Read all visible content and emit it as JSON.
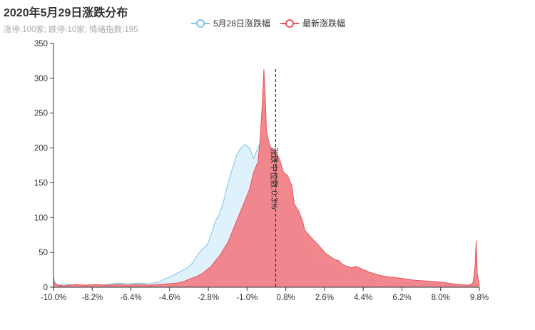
{
  "title": "2020年5月29日涨跌分布",
  "subtitle": "涨停:100家; 跌停:10家; 情绪指数:195",
  "legend": [
    {
      "name": "5月28日涨跌幅",
      "color": "#7ec3e6"
    },
    {
      "name": "最新涨跌幅",
      "color": "#e8535a"
    }
  ],
  "median_label": "涨跌中位数:0.3%",
  "chart_data": {
    "type": "area",
    "title": "2020年5月29日涨跌分布",
    "subtitle": "涨停:100家; 跌停:10家; 情绪指数:195",
    "xlabel": "",
    "ylabel": "",
    "xlim": [
      -10,
      10
    ],
    "ylim": [
      0,
      350
    ],
    "x_ticks": [
      "-10.0%",
      "-8.2%",
      "-6.4%",
      "-4.6%",
      "-2.8%",
      "-1.0%",
      "0.8%",
      "2.6%",
      "4.4%",
      "6.2%",
      "8.0%",
      "9.8%"
    ],
    "y_ticks": [
      0,
      50,
      100,
      150,
      200,
      250,
      300,
      350
    ],
    "grid": false,
    "legend_position": "top-center",
    "median": {
      "x": 0.3,
      "label": "涨跌中位数:0.3%"
    },
    "series": [
      {
        "name": "5月28日涨跌幅",
        "color": "#7ec3e6",
        "fill": "#dff1fb",
        "points": [
          [
            -10.0,
            15
          ],
          [
            -9.9,
            3
          ],
          [
            -9.5,
            5
          ],
          [
            -9.0,
            3
          ],
          [
            -8.5,
            2
          ],
          [
            -8.0,
            3
          ],
          [
            -7.5,
            4
          ],
          [
            -7.0,
            6
          ],
          [
            -6.5,
            5
          ],
          [
            -6.0,
            6
          ],
          [
            -5.5,
            5
          ],
          [
            -5.0,
            8
          ],
          [
            -4.8,
            12
          ],
          [
            -4.6,
            14
          ],
          [
            -4.2,
            20
          ],
          [
            -3.9,
            25
          ],
          [
            -3.6,
            30
          ],
          [
            -3.4,
            38
          ],
          [
            -3.2,
            48
          ],
          [
            -3.0,
            55
          ],
          [
            -2.8,
            60
          ],
          [
            -2.6,
            75
          ],
          [
            -2.4,
            95
          ],
          [
            -2.2,
            105
          ],
          [
            -2.0,
            125
          ],
          [
            -1.8,
            150
          ],
          [
            -1.6,
            170
          ],
          [
            -1.4,
            190
          ],
          [
            -1.2,
            200
          ],
          [
            -1.0,
            205
          ],
          [
            -0.8,
            200
          ],
          [
            -0.6,
            185
          ],
          [
            -0.4,
            200
          ],
          [
            -0.2,
            215
          ],
          [
            0.0,
            210
          ],
          [
            0.2,
            180
          ],
          [
            0.4,
            150
          ],
          [
            0.6,
            135
          ],
          [
            0.8,
            125
          ],
          [
            1.0,
            120
          ],
          [
            1.2,
            110
          ],
          [
            1.4,
            85
          ],
          [
            1.6,
            60
          ],
          [
            1.8,
            50
          ],
          [
            2.0,
            48
          ],
          [
            2.2,
            38
          ],
          [
            2.4,
            35
          ],
          [
            2.6,
            30
          ],
          [
            2.8,
            28
          ],
          [
            3.0,
            30
          ],
          [
            3.2,
            25
          ],
          [
            3.4,
            22
          ],
          [
            3.6,
            20
          ],
          [
            3.8,
            12
          ],
          [
            4.0,
            10
          ],
          [
            4.2,
            18
          ],
          [
            4.4,
            15
          ],
          [
            4.6,
            12
          ],
          [
            5.0,
            10
          ],
          [
            5.4,
            8
          ],
          [
            5.8,
            7
          ],
          [
            6.2,
            6
          ],
          [
            6.6,
            5
          ],
          [
            7.0,
            5
          ],
          [
            7.5,
            4
          ],
          [
            8.0,
            3
          ],
          [
            8.5,
            3
          ],
          [
            9.0,
            2
          ],
          [
            9.5,
            2
          ],
          [
            9.8,
            3
          ],
          [
            10.0,
            2
          ]
        ]
      },
      {
        "name": "最新涨跌幅",
        "color": "#e8535a",
        "fill": "#f17e84",
        "points": [
          [
            -10.0,
            8
          ],
          [
            -9.8,
            3
          ],
          [
            -9.5,
            2
          ],
          [
            -9.0,
            4
          ],
          [
            -8.5,
            3
          ],
          [
            -8.0,
            4
          ],
          [
            -7.5,
            3
          ],
          [
            -7.0,
            4
          ],
          [
            -6.5,
            3
          ],
          [
            -6.0,
            4
          ],
          [
            -5.5,
            3
          ],
          [
            -5.0,
            4
          ],
          [
            -4.6,
            5
          ],
          [
            -4.2,
            6
          ],
          [
            -3.9,
            8
          ],
          [
            -3.6,
            12
          ],
          [
            -3.3,
            15
          ],
          [
            -3.0,
            20
          ],
          [
            -2.8,
            25
          ],
          [
            -2.6,
            30
          ],
          [
            -2.4,
            38
          ],
          [
            -2.2,
            45
          ],
          [
            -2.0,
            55
          ],
          [
            -1.8,
            65
          ],
          [
            -1.6,
            80
          ],
          [
            -1.4,
            95
          ],
          [
            -1.2,
            110
          ],
          [
            -1.0,
            125
          ],
          [
            -0.8,
            140
          ],
          [
            -0.6,
            165
          ],
          [
            -0.4,
            180
          ],
          [
            -0.3,
            210
          ],
          [
            -0.2,
            260
          ],
          [
            -0.12,
            313
          ],
          [
            -0.05,
            270
          ],
          [
            0.0,
            225
          ],
          [
            0.1,
            210
          ],
          [
            0.2,
            200
          ],
          [
            0.4,
            195
          ],
          [
            0.6,
            185
          ],
          [
            0.7,
            175
          ],
          [
            0.8,
            165
          ],
          [
            1.0,
            160
          ],
          [
            1.2,
            145
          ],
          [
            1.3,
            120
          ],
          [
            1.5,
            110
          ],
          [
            1.7,
            95
          ],
          [
            1.8,
            82
          ],
          [
            2.0,
            75
          ],
          [
            2.2,
            68
          ],
          [
            2.4,
            62
          ],
          [
            2.6,
            55
          ],
          [
            2.8,
            48
          ],
          [
            3.0,
            44
          ],
          [
            3.2,
            40
          ],
          [
            3.4,
            38
          ],
          [
            3.6,
            32
          ],
          [
            3.8,
            30
          ],
          [
            4.0,
            28
          ],
          [
            4.2,
            30
          ],
          [
            4.5,
            26
          ],
          [
            4.8,
            22
          ],
          [
            5.0,
            20
          ],
          [
            5.2,
            18
          ],
          [
            5.5,
            16
          ],
          [
            6.0,
            14
          ],
          [
            6.5,
            12
          ],
          [
            7.0,
            10
          ],
          [
            7.5,
            9
          ],
          [
            8.0,
            8
          ],
          [
            8.5,
            6
          ],
          [
            9.0,
            4
          ],
          [
            9.5,
            3
          ],
          [
            9.7,
            6
          ],
          [
            9.8,
            30
          ],
          [
            9.85,
            67
          ],
          [
            9.9,
            20
          ],
          [
            10.0,
            2
          ]
        ]
      }
    ]
  }
}
